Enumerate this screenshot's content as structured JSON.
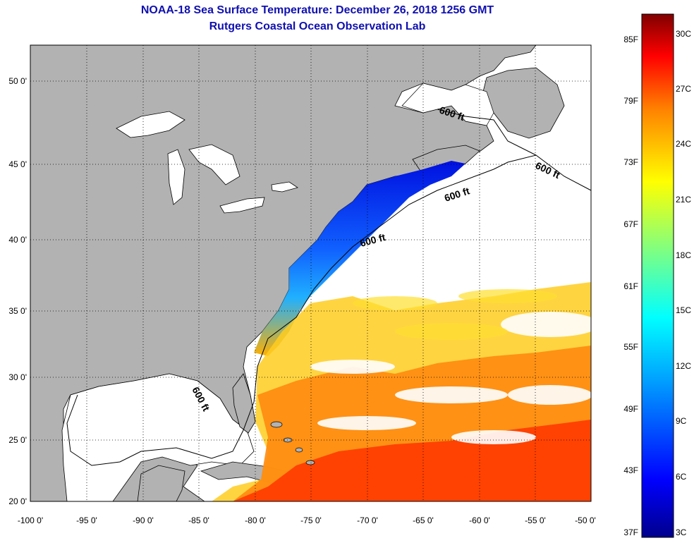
{
  "title": {
    "line1": "NOAA-18 Sea Surface Temperature:  December 26, 2018 1256 GMT",
    "line2": "Rutgers Coastal Ocean Observation Lab"
  },
  "map": {
    "lat_ticks": [
      "50 0'",
      "45 0'",
      "40 0'",
      "35 0'",
      "30 0'",
      "25 0'",
      "20 0'"
    ],
    "lon_ticks": [
      "-100 0'",
      "-95 0'",
      "-90 0'",
      "-85 0'",
      "-80 0'",
      "-75 0'",
      "-70 0'",
      "-65 0'",
      "-60 0'",
      "-55 0'",
      "-50 0'"
    ],
    "contour_labels": [
      "600 ft",
      "600 ft",
      "600 ft",
      "600 ft",
      "600 ft"
    ],
    "land_color": "#b2b2b2",
    "ocean_color": "#ffffff"
  },
  "colorbar": {
    "fahrenheit": [
      "85F",
      "79F",
      "73F",
      "67F",
      "61F",
      "55F",
      "49F",
      "43F",
      "37F"
    ],
    "celsius": [
      "30C",
      "27C",
      "24C",
      "21C",
      "18C",
      "15C",
      "12C",
      "9C",
      "6C",
      "3C"
    ]
  }
}
